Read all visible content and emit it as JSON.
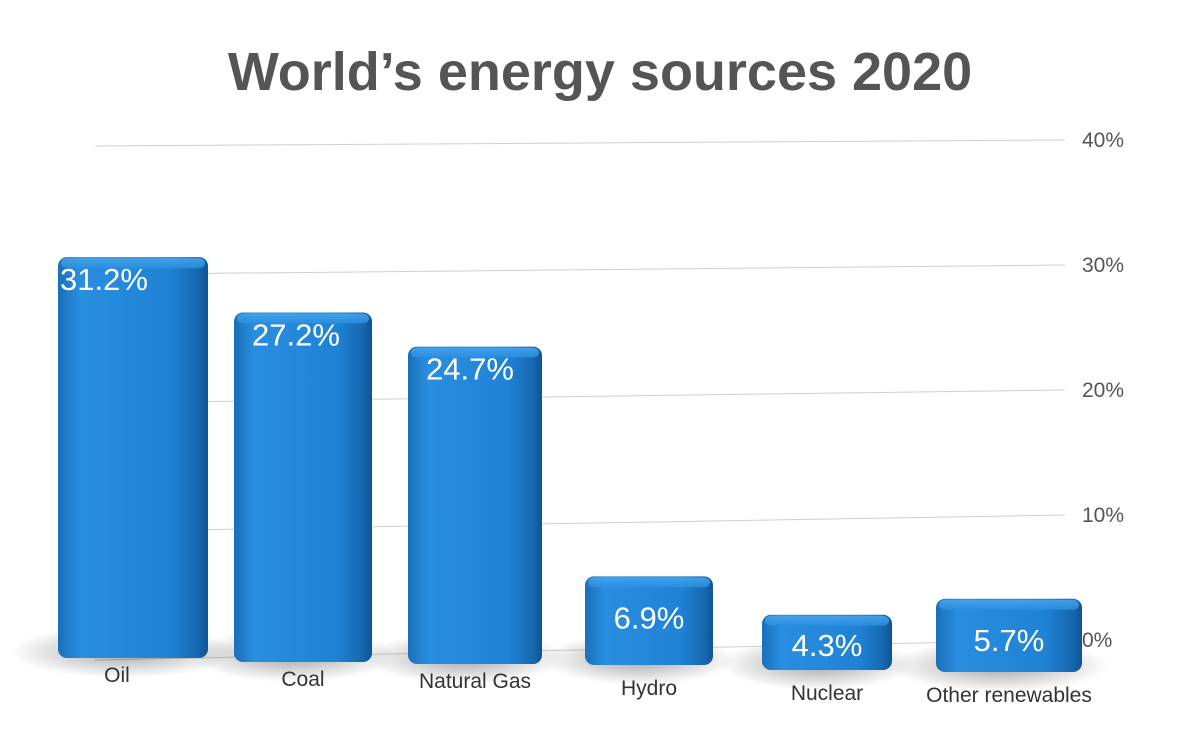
{
  "chart_data": {
    "type": "bar",
    "title": "World’s energy sources 2020",
    "categories": [
      "Oil",
      "Coal",
      "Natural Gas",
      "Hydro",
      "Nuclear",
      "Other renewables"
    ],
    "values": [
      31.2,
      27.2,
      24.7,
      6.9,
      4.3,
      5.7
    ],
    "value_labels": [
      "31.2%",
      "27.2%",
      "24.7%",
      "6.9%",
      "4.3%",
      "5.7%"
    ],
    "yticks": [
      "0%",
      "10%",
      "20%",
      "30%",
      "40%"
    ],
    "ylim": [
      0,
      40
    ],
    "y_axis_position": "right",
    "grid": true,
    "bar_color": "#1e7fd0",
    "label_color": "#ffffff",
    "title_color": "#555555"
  }
}
